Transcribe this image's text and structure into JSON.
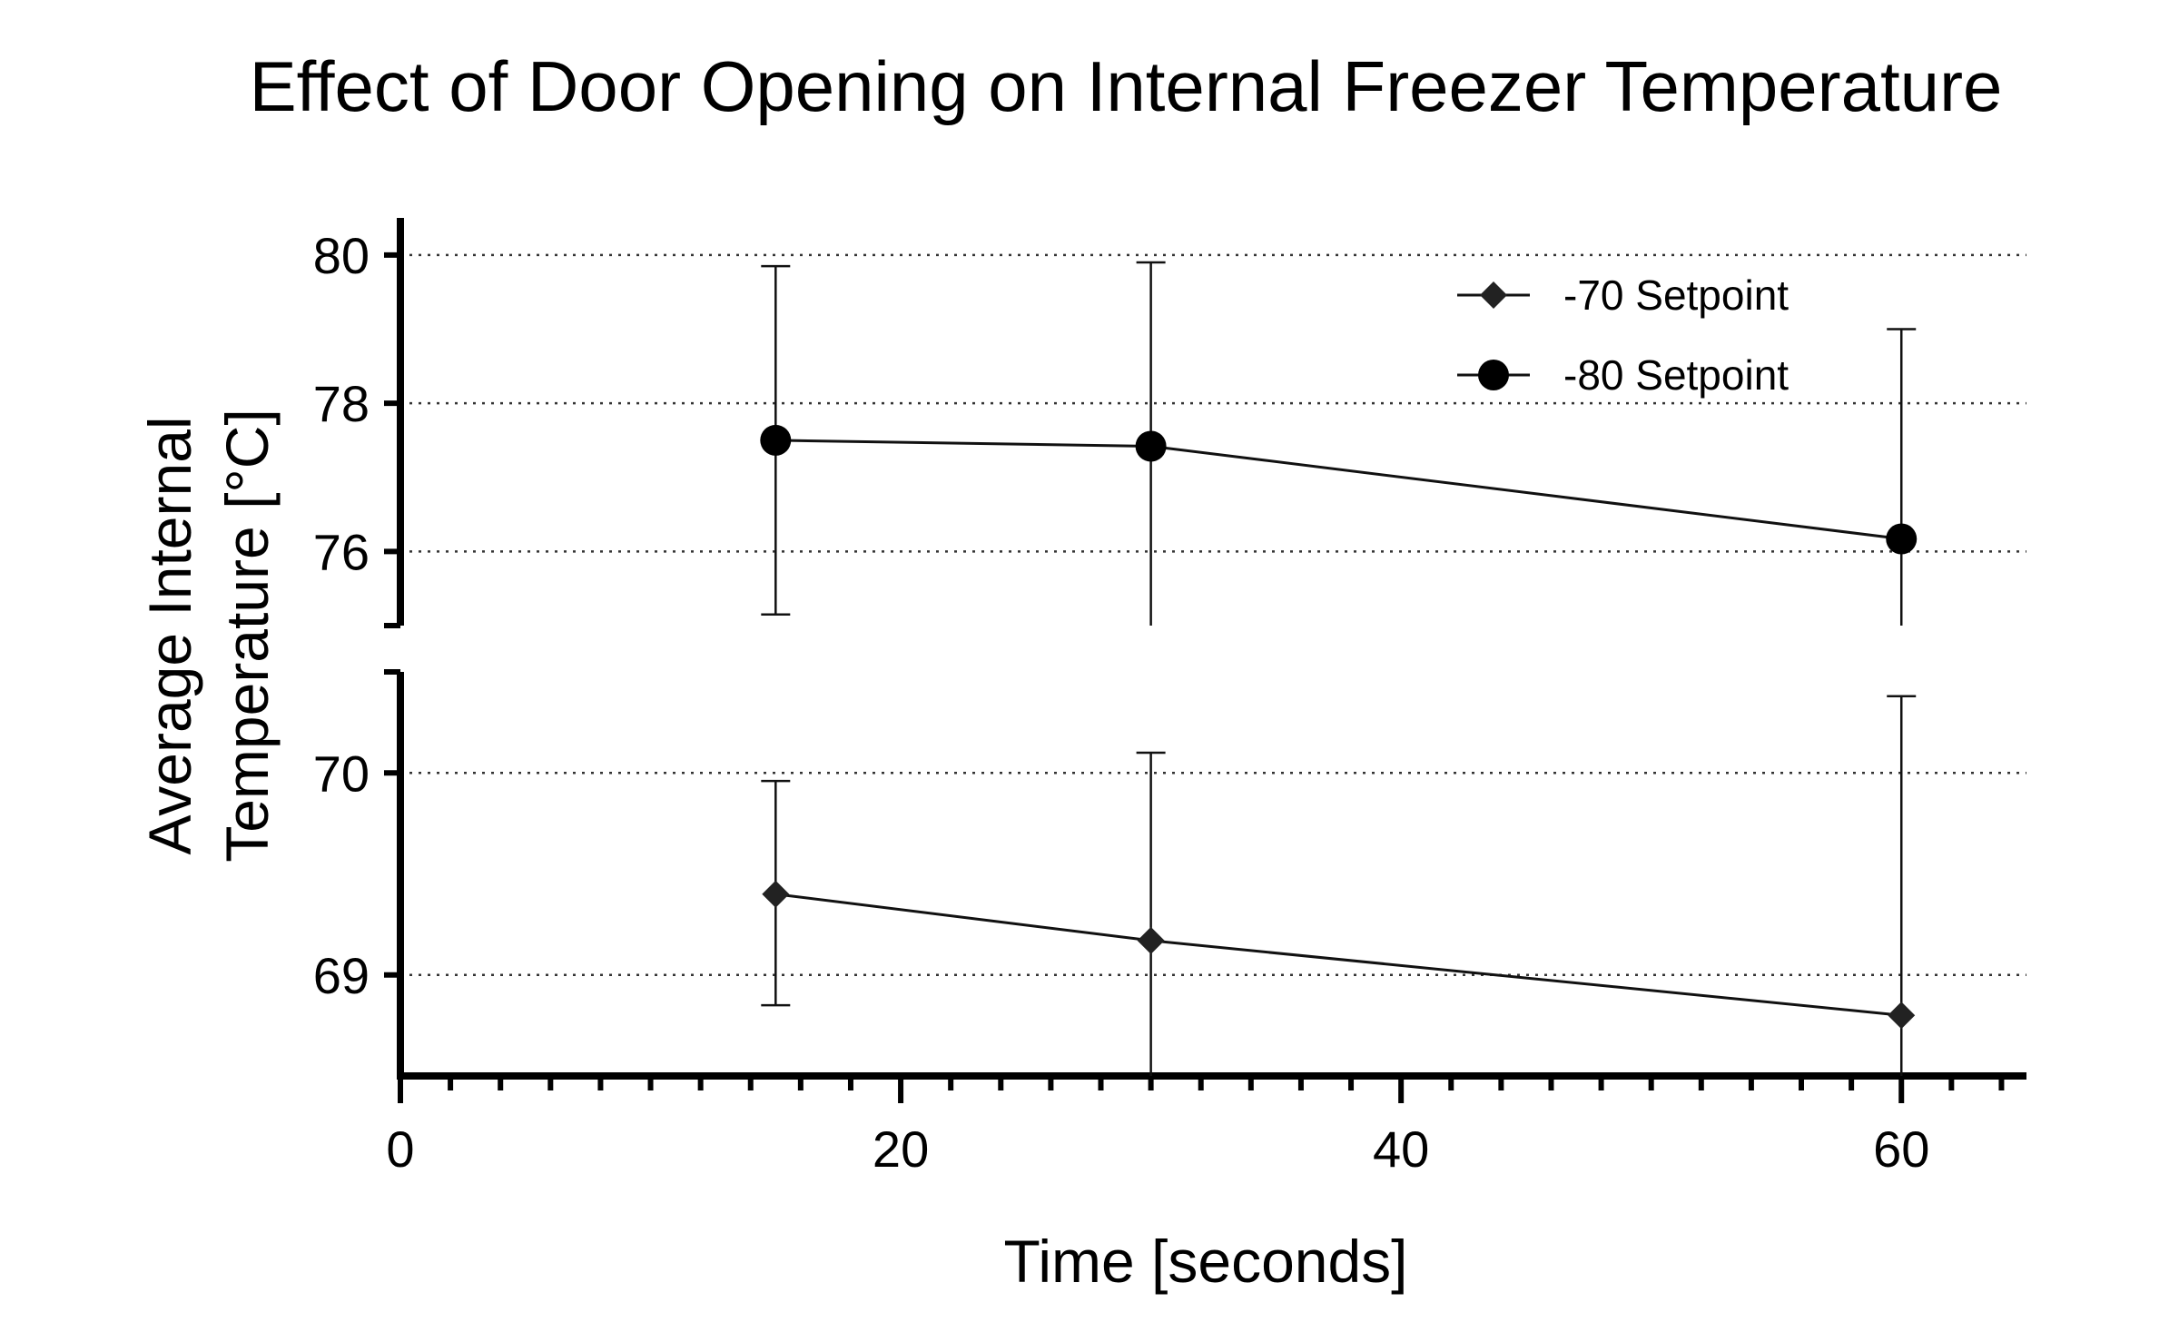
{
  "chart_data": {
    "type": "line",
    "title": "Effect of Door Opening on Internal Freezer Temperature",
    "xlabel": "Time [seconds]",
    "ylabel": [
      "Average Internal",
      "Temperature [°C]"
    ],
    "xlim": [
      0,
      65
    ],
    "x_ticks": [
      0,
      20,
      40,
      60
    ],
    "y_axis_break": true,
    "y_segments": [
      {
        "name": "upper",
        "ylim": [
          75,
          80.5
        ],
        "ticks": [
          76,
          78,
          80
        ]
      },
      {
        "name": "lower",
        "ylim": [
          68.5,
          70.5
        ],
        "ticks": [
          69,
          70
        ]
      }
    ],
    "grid": "horizontal dotted at y ticks",
    "legend_position": "top-right",
    "series": [
      {
        "name": "-70 Setpoint",
        "marker": "diamond",
        "color": "#222222",
        "x": [
          15,
          30,
          60
        ],
        "y": [
          69.4,
          69.17,
          68.8
        ],
        "err_low": [
          68.85,
          68.5,
          68.5
        ],
        "err_high": [
          69.96,
          70.1,
          70.38
        ]
      },
      {
        "name": "-80 Setpoint",
        "marker": "circle",
        "color": "#000000",
        "x": [
          15,
          30,
          60
        ],
        "y": [
          77.5,
          77.42,
          76.17
        ],
        "err_low": [
          75.15,
          75,
          75
        ],
        "err_high": [
          79.85,
          79.9,
          79.0
        ]
      }
    ]
  }
}
